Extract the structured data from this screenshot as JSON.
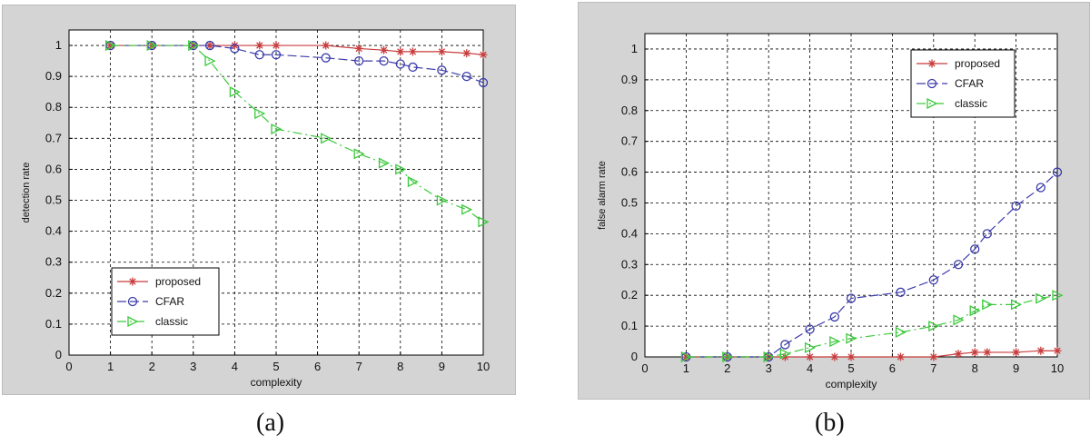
{
  "chart_data": [
    {
      "type": "line",
      "caption": "(a)",
      "xlabel": "complexity",
      "ylabel": "detection rate",
      "xlim": [
        0,
        10
      ],
      "ylim": [
        0,
        1.05
      ],
      "xticks": [
        "0",
        "1",
        "2",
        "3",
        "4",
        "5",
        "6",
        "7",
        "8",
        "9",
        "10"
      ],
      "yticks": [
        "0",
        "0.1",
        "0.2",
        "0.3",
        "0.4",
        "0.5",
        "0.6",
        "0.7",
        "0.8",
        "0.9",
        "1"
      ],
      "grid": true,
      "legend_position": "bottom-left",
      "series": [
        {
          "name": "proposed",
          "color": "#c83c3c",
          "marker": "star",
          "dash": "none",
          "x": [
            1,
            2,
            3,
            3.4,
            4,
            4.6,
            5,
            6.2,
            7,
            7.6,
            8,
            8.3,
            9,
            9.6,
            10
          ],
          "y": [
            1,
            1,
            1,
            1,
            1,
            1,
            1,
            1,
            0.99,
            0.985,
            0.98,
            0.98,
            0.98,
            0.975,
            0.97
          ]
        },
        {
          "name": "CFAR",
          "color": "#3c3caa",
          "marker": "circle",
          "dash": "long",
          "x": [
            1,
            2,
            3,
            3.4,
            4,
            4.6,
            5,
            6.2,
            7,
            7.6,
            8,
            8.3,
            9,
            9.6,
            10
          ],
          "y": [
            1,
            1,
            1,
            1,
            0.99,
            0.97,
            0.97,
            0.96,
            0.95,
            0.95,
            0.94,
            0.93,
            0.92,
            0.9,
            0.88
          ]
        },
        {
          "name": "classic",
          "color": "#3cc83c",
          "marker": "triangle-right",
          "dash": "dashdot",
          "x": [
            1,
            2,
            3,
            3.4,
            4,
            4.6,
            5,
            6.2,
            7,
            7.6,
            8,
            8.3,
            9,
            9.6,
            10
          ],
          "y": [
            1,
            1,
            1,
            0.95,
            0.85,
            0.78,
            0.73,
            0.7,
            0.65,
            0.62,
            0.6,
            0.56,
            0.5,
            0.47,
            0.43
          ]
        }
      ]
    },
    {
      "type": "line",
      "caption": "(b)",
      "xlabel": "complexity",
      "ylabel": "false alarm rate",
      "xlim": [
        0,
        10
      ],
      "ylim": [
        0,
        1.05
      ],
      "xticks": [
        "0",
        "1",
        "2",
        "3",
        "4",
        "5",
        "6",
        "7",
        "8",
        "9",
        "10"
      ],
      "yticks": [
        "0",
        "0.1",
        "0.2",
        "0.3",
        "0.4",
        "0.5",
        "0.6",
        "0.7",
        "0.8",
        "0.9",
        "1"
      ],
      "grid": true,
      "legend_position": "top-right",
      "series": [
        {
          "name": "proposed",
          "color": "#c83c3c",
          "marker": "star",
          "dash": "none",
          "x": [
            1,
            2,
            3,
            3.4,
            4,
            4.6,
            5,
            6.2,
            7,
            7.6,
            8,
            8.3,
            9,
            9.6,
            10
          ],
          "y": [
            0,
            0,
            0,
            0,
            0,
            0,
            0,
            0,
            0,
            0.01,
            0.015,
            0.015,
            0.015,
            0.02,
            0.02
          ]
        },
        {
          "name": "CFAR",
          "color": "#3c3caa",
          "marker": "circle",
          "dash": "long",
          "x": [
            1,
            2,
            3,
            3.4,
            4,
            4.6,
            5,
            6.2,
            7,
            7.6,
            8,
            8.3,
            9,
            9.6,
            10
          ],
          "y": [
            0,
            0,
            0,
            0.04,
            0.09,
            0.13,
            0.19,
            0.21,
            0.25,
            0.3,
            0.35,
            0.4,
            0.49,
            0.55,
            0.6
          ]
        },
        {
          "name": "classic",
          "color": "#3cc83c",
          "marker": "triangle-right",
          "dash": "dashdot",
          "x": [
            1,
            2,
            3,
            3.4,
            4,
            4.6,
            5,
            6.2,
            7,
            7.6,
            8,
            8.3,
            9,
            9.6,
            10
          ],
          "y": [
            0,
            0,
            0,
            0.01,
            0.03,
            0.05,
            0.06,
            0.08,
            0.1,
            0.12,
            0.15,
            0.17,
            0.17,
            0.19,
            0.2
          ]
        }
      ]
    }
  ]
}
